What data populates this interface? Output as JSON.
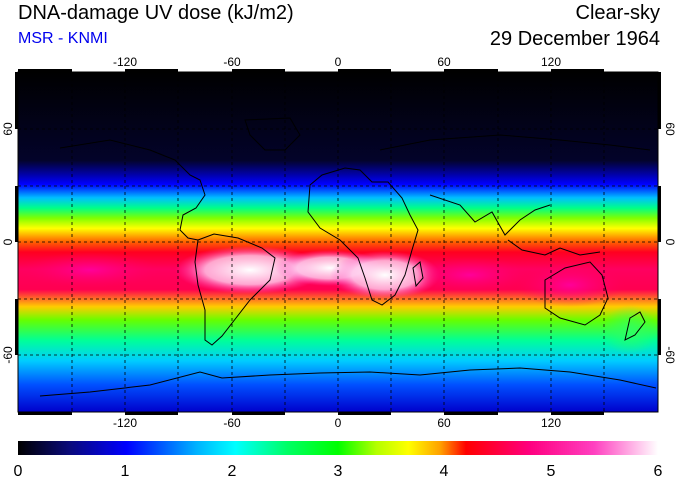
{
  "header": {
    "title": "DNA-damage UV dose (kJ/m2)",
    "source": "MSR - KNMI",
    "condition": "Clear-sky",
    "date": "29 December 1964"
  },
  "colors": {
    "source_text": "#0000ee",
    "scale": [
      "#000000",
      "#0a0a7a",
      "#0000ff",
      "#00b4ff",
      "#00ffff",
      "#00ff66",
      "#00ff00",
      "#b4ff00",
      "#ffff00",
      "#ffa000",
      "#ff0000",
      "#ff0080",
      "#ff40c0",
      "#ffffff"
    ]
  },
  "map": {
    "longitude_ticks": [
      "-120",
      "-60",
      "0",
      "60",
      "120"
    ],
    "latitude_ticks": [
      "60",
      "0",
      "-60"
    ]
  },
  "colorbar": {
    "labels": [
      "0",
      "1",
      "2",
      "3",
      "4",
      "5",
      "6"
    ]
  }
}
